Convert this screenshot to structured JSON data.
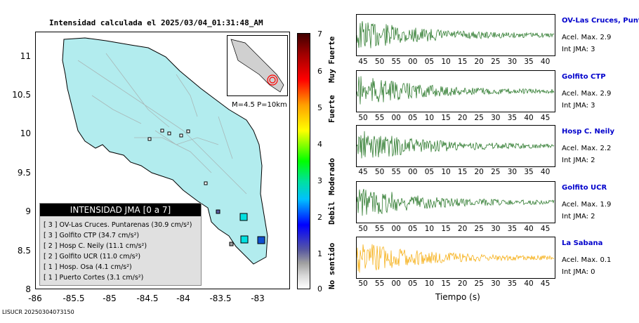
{
  "map": {
    "title": "Intensidad calculada el 2025/03/04_01:31:48_AM",
    "lat_ticks": [
      "11",
      "10.5",
      "10",
      "9.5",
      "9",
      "8.5",
      "8"
    ],
    "lon_ticks": [
      "-86",
      "-85.5",
      "-85",
      "-84.5",
      "-84",
      "-83.5",
      "-83"
    ],
    "inset_label": "M=4.5 P=10km",
    "colors": {
      "land": "#b2ecee",
      "roads": "#a8b8b8",
      "border": "#000000"
    }
  },
  "legend": {
    "title": "INTENSIDAD JMA [0 a 7]",
    "rows": [
      {
        "jma": "[ 3 ]",
        "text": "OV-Las Cruces. Puntarenas (30.9 cm/s²)"
      },
      {
        "jma": "[ 3 ]",
        "text": "Golfito CTP (34.7 cm/s²)"
      },
      {
        "jma": "[ 2 ]",
        "text": "Hosp C. Neily (11.1 cm/s²)"
      },
      {
        "jma": "[ 2 ]",
        "text": "Golfito UCR (11.0 cm/s²)"
      },
      {
        "jma": "[ 1 ]",
        "text": "Hosp. Osa (4.1 cm/s²)"
      },
      {
        "jma": "[ 1 ]",
        "text": "Puerto Cortes (3.1 cm/s²)"
      }
    ]
  },
  "colorbar": {
    "ticks": [
      "7",
      "6",
      "5",
      "4",
      "3",
      "2",
      "1",
      "0"
    ],
    "words": [
      "Muy Fuerte",
      "Fuerte",
      "Moderado",
      "Debil",
      "No sentido"
    ]
  },
  "stations": [
    {
      "name": "OV-Las Cruces, Puntar",
      "accel": "Acel. Max. 2.9",
      "jma": "Int JMA: 3",
      "color": "#1a6e1a",
      "ticks": [
        "45",
        "50",
        "55",
        "00",
        "05",
        "10",
        "15",
        "20",
        "25",
        "30",
        "35",
        "40"
      ]
    },
    {
      "name": "Golfito CTP",
      "accel": "Acel. Max. 2.9",
      "jma": "Int JMA: 3",
      "color": "#1a6e1a",
      "ticks": [
        "50",
        "55",
        "00",
        "05",
        "10",
        "15",
        "20",
        "25",
        "30",
        "35",
        "40",
        "45"
      ]
    },
    {
      "name": "Hosp C. Neily",
      "accel": "Acel. Max. 2.2",
      "jma": "Int JMA: 2",
      "color": "#1a6e1a",
      "ticks": [
        "45",
        "50",
        "55",
        "00",
        "05",
        "10",
        "15",
        "20",
        "25",
        "30",
        "35",
        "40"
      ]
    },
    {
      "name": "Golfito UCR",
      "accel": "Acel. Max. 1.9",
      "jma": "Int JMA: 2",
      "color": "#1a6e1a",
      "ticks": [
        "50",
        "55",
        "00",
        "05",
        "10",
        "15",
        "20",
        "25",
        "30",
        "35",
        "40",
        "45"
      ]
    },
    {
      "name": "La Sabana",
      "accel": "Acel. Max. 0.1",
      "jma": "Int JMA: 0",
      "color": "#f5a800",
      "ticks": [
        "50",
        "55",
        "00",
        "05",
        "10",
        "15",
        "20",
        "25",
        "30",
        "35",
        "40",
        "45"
      ]
    }
  ],
  "time_axis_label": "Tiempo (s)",
  "footer_id": "LISUCR 20250304073150"
}
